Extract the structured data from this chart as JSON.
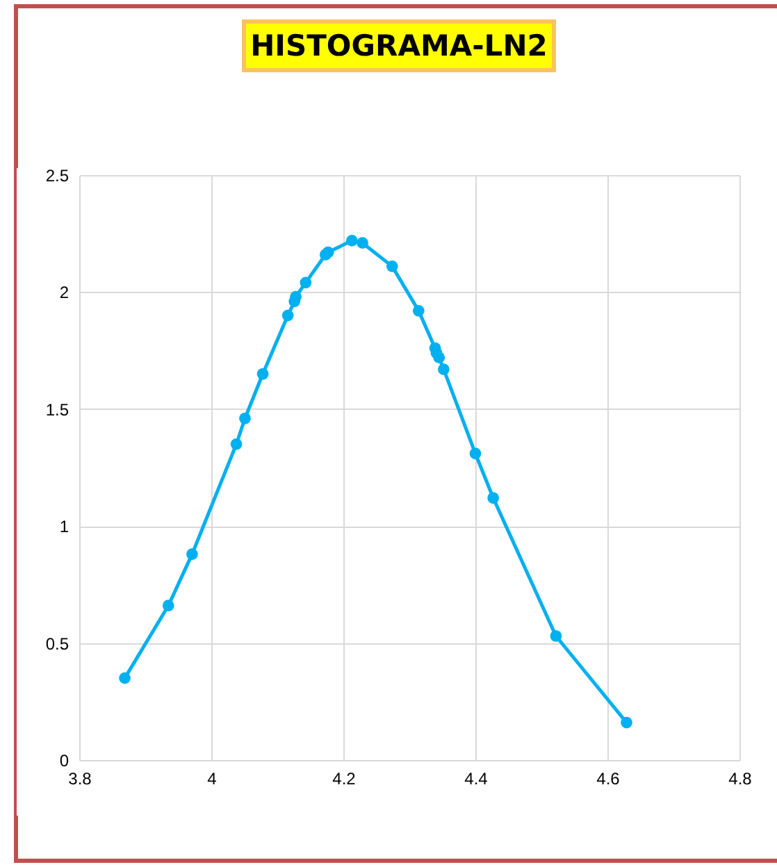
{
  "chart_data": {
    "type": "line",
    "title": "HISTOGRAMA-LN2",
    "x": [
      3.869,
      3.935,
      3.971,
      4.038,
      4.051,
      4.078,
      4.116,
      4.126,
      4.128,
      4.143,
      4.173,
      4.177,
      4.213,
      4.229,
      4.274,
      4.314,
      4.339,
      4.341,
      4.345,
      4.352,
      4.4,
      4.427,
      4.522,
      4.629
    ],
    "series": [
      {
        "color": "#00b0f0",
        "values": [
          0.35,
          0.66,
          0.88,
          1.35,
          1.46,
          1.65,
          1.9,
          1.96,
          1.98,
          2.04,
          2.16,
          2.17,
          2.22,
          2.21,
          2.11,
          1.92,
          1.76,
          1.74,
          1.72,
          1.67,
          1.31,
          1.12,
          0.53,
          0.16
        ]
      }
    ],
    "xlim": [
      3.8,
      4.8
    ],
    "xticks": [
      3.8,
      4,
      4.2,
      4.4,
      4.6,
      4.8
    ],
    "ylim": [
      0,
      2.5
    ],
    "yticks": [
      0,
      0.5,
      1,
      1.5,
      2,
      2.5
    ],
    "grid": true,
    "marker": "circle",
    "line_style": "solid"
  }
}
